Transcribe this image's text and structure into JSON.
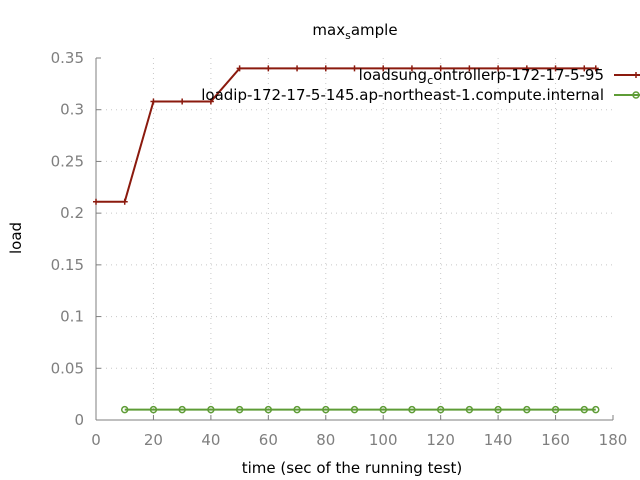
{
  "chart_data": {
    "type": "line",
    "title": "max_sample",
    "title_main": "max",
    "title_sub": "s",
    "title_rest": "ample",
    "xlabel": "time (sec of the running test)",
    "ylabel": "load",
    "xlim": [
      0,
      180
    ],
    "ylim": [
      0,
      0.35
    ],
    "x_ticks": [
      0,
      20,
      40,
      60,
      80,
      100,
      120,
      140,
      160,
      180
    ],
    "y_ticks": [
      0,
      0.05,
      0.1,
      0.15,
      0.2,
      0.25,
      0.3,
      0.35
    ],
    "y_tick_labels": [
      "0",
      "0.05",
      "0.1",
      "0.15",
      "0.2",
      "0.25",
      "0.3",
      "0.35"
    ],
    "grid": true,
    "legend_position": "top-right",
    "series": [
      {
        "name": "load_sung_controller_p-172-17-5-95",
        "legend_main": "loadsung",
        "legend_sub": "c",
        "legend_rest": "ontrollerp-172-17-5-95",
        "color": "#8b1a0e",
        "marker": "plus",
        "x": [
          0,
          10,
          20,
          30,
          40,
          50,
          60,
          70,
          80,
          90,
          100,
          110,
          120,
          130,
          140,
          150,
          160,
          170,
          174
        ],
        "y": [
          0.211,
          0.211,
          0.308,
          0.308,
          0.308,
          0.34,
          0.34,
          0.34,
          0.34,
          0.34,
          0.34,
          0.34,
          0.34,
          0.34,
          0.34,
          0.34,
          0.34,
          0.34,
          0.34
        ]
      },
      {
        "name": "loadip-172-17-5-145.ap-northeast-1.compute.internal",
        "legend_main": "loadip-172-17-5-145.ap-northeast-1.compute.internal",
        "legend_sub": "",
        "legend_rest": "",
        "color": "#5e9c36",
        "marker": "circle",
        "x": [
          10,
          20,
          30,
          40,
          50,
          60,
          70,
          80,
          90,
          100,
          110,
          120,
          130,
          140,
          150,
          160,
          170,
          174
        ],
        "y": [
          0.01,
          0.01,
          0.01,
          0.01,
          0.01,
          0.01,
          0.01,
          0.01,
          0.01,
          0.01,
          0.01,
          0.01,
          0.01,
          0.01,
          0.01,
          0.01,
          0.01,
          0.01
        ]
      }
    ]
  }
}
